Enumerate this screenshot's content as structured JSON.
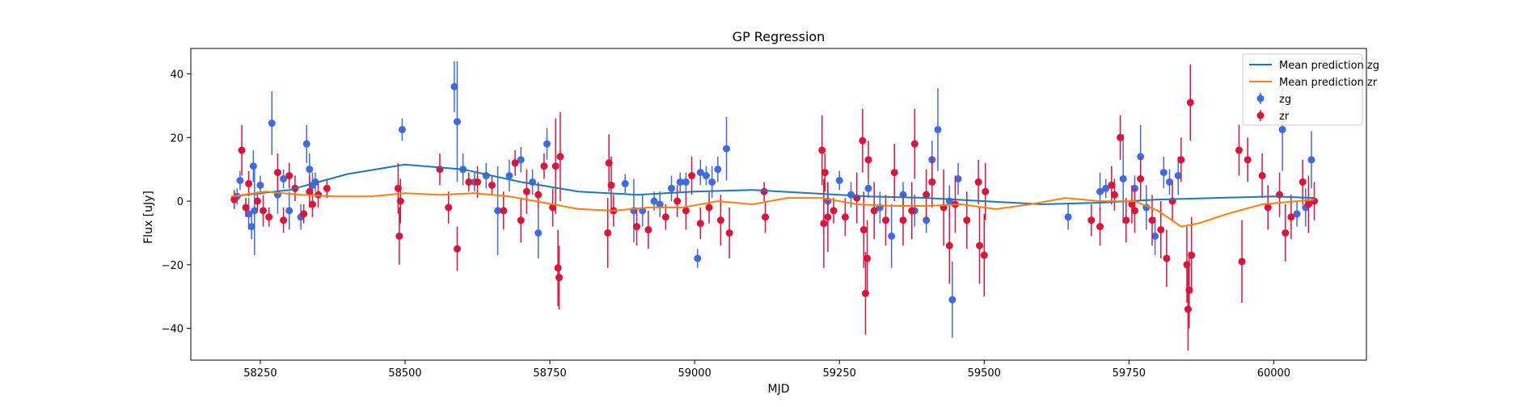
{
  "chart_data": {
    "type": "scatter",
    "title": "GP Regression",
    "xlabel": "MJD",
    "ylabel": "Flux [uJy]",
    "xlim": [
      58130,
      60160
    ],
    "ylim": [
      -50,
      48
    ],
    "xticks": [
      58250,
      58500,
      58750,
      59000,
      59250,
      59500,
      59750,
      60000
    ],
    "yticks": [
      -40,
      -20,
      0,
      20,
      40
    ],
    "grid": false,
    "legend_position": "top-right",
    "colors": {
      "zg_line": "#1f77b4",
      "zr_line": "#ff7f0e",
      "zg_points": "#4169e1",
      "zr_points": "#dc143c"
    },
    "legend": [
      "Mean prediction zg",
      "Mean prediction zr",
      "zg",
      "zr"
    ],
    "lines": [
      {
        "name": "Mean prediction zg",
        "x": [
          58200,
          58300,
          58400,
          58500,
          58600,
          58700,
          58800,
          58900,
          59000,
          59100,
          59200,
          59300,
          59400,
          59500,
          59600,
          59700,
          59800,
          59900,
          60000,
          60070
        ],
        "y": [
          1.5,
          3.5,
          8.5,
          11.5,
          10.0,
          6.0,
          3.0,
          2.0,
          3.0,
          3.5,
          2.5,
          1.5,
          1.0,
          0.0,
          -1.0,
          -0.5,
          0.5,
          1.0,
          1.5,
          1.0
        ]
      },
      {
        "name": "Mean prediction zr",
        "x": [
          58200,
          58260,
          58320,
          58380,
          58440,
          58500,
          58560,
          58620,
          58680,
          58740,
          58800,
          58860,
          58920,
          58980,
          59040,
          59100,
          59160,
          59220,
          59280,
          59340,
          59400,
          59460,
          59520,
          59580,
          59640,
          59700,
          59760,
          59800,
          59840,
          59870,
          59920,
          59980,
          60040,
          60070
        ],
        "y": [
          1.5,
          3.0,
          2.0,
          1.5,
          1.5,
          2.5,
          2.0,
          2.5,
          1.5,
          -0.5,
          -2.5,
          -3.0,
          -2.0,
          -2.0,
          0.0,
          -1.0,
          1.0,
          1.0,
          -1.0,
          -1.5,
          -1.5,
          -1.0,
          -2.5,
          -1.0,
          1.0,
          0.0,
          0.0,
          -3.0,
          -8.0,
          -7.0,
          -4.0,
          -1.0,
          0.0,
          0.5
        ]
      }
    ],
    "points": [
      {
        "name": "zg",
        "data": [
          [
            58210,
            1.5,
            2.5
          ],
          [
            58215,
            6.5,
            3
          ],
          [
            58230,
            -4,
            5
          ],
          [
            58235,
            -8,
            4
          ],
          [
            58238,
            11,
            5
          ],
          [
            58240,
            -3,
            14
          ],
          [
            58250,
            5,
            3
          ],
          [
            58270,
            24.5,
            10
          ],
          [
            58280,
            2,
            6
          ],
          [
            58290,
            7,
            3
          ],
          [
            58300,
            -3,
            6
          ],
          [
            58320,
            -5,
            4
          ],
          [
            58330,
            18,
            6
          ],
          [
            58335,
            10,
            5
          ],
          [
            58340,
            5,
            4
          ],
          [
            58345,
            6,
            3
          ],
          [
            58495,
            22.5,
            3.5
          ],
          [
            58585,
            36,
            8
          ],
          [
            58590,
            25,
            19
          ],
          [
            58600,
            10,
            5
          ],
          [
            58620,
            6,
            3
          ],
          [
            58640,
            8,
            4
          ],
          [
            58660,
            -3,
            14
          ],
          [
            58680,
            8,
            5
          ],
          [
            58700,
            13,
            4
          ],
          [
            58720,
            6,
            4
          ],
          [
            58730,
            -10,
            8
          ],
          [
            58745,
            18,
            5
          ],
          [
            58880,
            5.5,
            3
          ],
          [
            58895,
            -3,
            10
          ],
          [
            58910,
            -3,
            5
          ],
          [
            58930,
            0,
            3
          ],
          [
            58940,
            -1,
            4
          ],
          [
            58960,
            4,
            4
          ],
          [
            58975,
            6,
            3
          ],
          [
            58985,
            6,
            3
          ],
          [
            59005,
            -18,
            3
          ],
          [
            59010,
            9,
            4
          ],
          [
            59020,
            8,
            3
          ],
          [
            59030,
            6,
            5
          ],
          [
            59040,
            10,
            4
          ],
          [
            59055,
            16.5,
            10
          ],
          [
            59230,
            0,
            6
          ],
          [
            59250,
            6.5,
            3
          ],
          [
            59270,
            2,
            4
          ],
          [
            59300,
            4,
            3
          ],
          [
            59320,
            -2,
            5
          ],
          [
            59340,
            -11,
            10
          ],
          [
            59360,
            2,
            4
          ],
          [
            59380,
            -3,
            5
          ],
          [
            59400,
            -6,
            4
          ],
          [
            59410,
            13,
            6
          ],
          [
            59420,
            22.5,
            13
          ],
          [
            59440,
            0,
            5
          ],
          [
            59445,
            -31,
            12
          ],
          [
            59455,
            7,
            5
          ],
          [
            59645,
            -5,
            4
          ],
          [
            59700,
            3,
            6
          ],
          [
            59710,
            4,
            3
          ],
          [
            59740,
            7,
            14
          ],
          [
            59760,
            4,
            4
          ],
          [
            59770,
            14,
            10
          ],
          [
            59780,
            -2,
            7
          ],
          [
            59795,
            -11,
            6
          ],
          [
            59810,
            9,
            5
          ],
          [
            59820,
            6,
            4
          ],
          [
            59835,
            8,
            6
          ],
          [
            60015,
            22.5,
            13
          ],
          [
            60040,
            -4,
            4
          ],
          [
            60055,
            -2,
            6
          ],
          [
            60065,
            13,
            9
          ]
        ]
      },
      {
        "name": "zr",
        "data": [
          [
            58205,
            0.5,
            3
          ],
          [
            58218,
            16,
            8
          ],
          [
            58225,
            -2,
            3
          ],
          [
            58230,
            5.5,
            4
          ],
          [
            58245,
            0,
            3
          ],
          [
            58255,
            -3,
            5
          ],
          [
            58265,
            -5,
            3
          ],
          [
            58280,
            9,
            6
          ],
          [
            58290,
            -6,
            4
          ],
          [
            58300,
            8,
            4
          ],
          [
            58310,
            4,
            4
          ],
          [
            58325,
            -4,
            3
          ],
          [
            58335,
            3,
            5
          ],
          [
            58340,
            -1,
            4
          ],
          [
            58350,
            2,
            4
          ],
          [
            58365,
            4,
            3
          ],
          [
            58488,
            4,
            8
          ],
          [
            58490,
            -11,
            9
          ],
          [
            58492,
            0,
            7
          ],
          [
            58560,
            10,
            5
          ],
          [
            58575,
            -2,
            5
          ],
          [
            58590,
            -15,
            7
          ],
          [
            58610,
            6,
            3
          ],
          [
            58625,
            6,
            5
          ],
          [
            58650,
            5,
            3
          ],
          [
            58670,
            -3,
            6
          ],
          [
            58690,
            12,
            4
          ],
          [
            58700,
            -6,
            7
          ],
          [
            58710,
            3,
            7
          ],
          [
            58730,
            2,
            4
          ],
          [
            58740,
            11,
            4
          ],
          [
            58755,
            -2,
            6
          ],
          [
            58760,
            11,
            15
          ],
          [
            58764,
            -21,
            12
          ],
          [
            58766,
            -24,
            10
          ],
          [
            58768,
            14,
            14
          ],
          [
            58850,
            -10,
            11
          ],
          [
            58852,
            12,
            9
          ],
          [
            58856,
            5,
            9
          ],
          [
            58860,
            -3,
            5
          ],
          [
            58900,
            -8,
            6
          ],
          [
            58920,
            -9,
            6
          ],
          [
            58950,
            -5,
            4
          ],
          [
            58970,
            0,
            5
          ],
          [
            58985,
            -3,
            6
          ],
          [
            58995,
            8,
            6
          ],
          [
            59010,
            -7,
            5
          ],
          [
            59025,
            -2,
            5
          ],
          [
            59045,
            -6,
            8
          ],
          [
            59060,
            -10,
            8
          ],
          [
            59120,
            3,
            3
          ],
          [
            59122,
            -5,
            5
          ],
          [
            59220,
            16,
            11
          ],
          [
            59223,
            -7,
            14
          ],
          [
            59225,
            9,
            6
          ],
          [
            59230,
            -5,
            11
          ],
          [
            59240,
            -3,
            4
          ],
          [
            59260,
            -5,
            6
          ],
          [
            59280,
            1,
            8
          ],
          [
            59290,
            19,
            10
          ],
          [
            59292,
            -9,
            12
          ],
          [
            59295,
            -29,
            13
          ],
          [
            59298,
            -18,
            12
          ],
          [
            59300,
            13,
            6
          ],
          [
            59310,
            -3,
            9
          ],
          [
            59330,
            -6,
            8
          ],
          [
            59345,
            9,
            9
          ],
          [
            59360,
            -6,
            8
          ],
          [
            59375,
            -3,
            9
          ],
          [
            59380,
            18,
            11
          ],
          [
            59400,
            2,
            8
          ],
          [
            59410,
            6,
            8
          ],
          [
            59430,
            -2,
            12
          ],
          [
            59440,
            -14,
            12
          ],
          [
            59450,
            -1,
            9
          ],
          [
            59470,
            -6,
            9
          ],
          [
            59490,
            6,
            7
          ],
          [
            59492,
            -14,
            12
          ],
          [
            59500,
            -17,
            13
          ],
          [
            59502,
            3,
            9
          ],
          [
            59685,
            -6,
            5
          ],
          [
            59700,
            -8,
            6
          ],
          [
            59720,
            5,
            6
          ],
          [
            59725,
            2,
            5
          ],
          [
            59735,
            20,
            7
          ],
          [
            59745,
            -6,
            7
          ],
          [
            59755,
            -1,
            6
          ],
          [
            59760,
            -3,
            7
          ],
          [
            59770,
            7,
            7
          ],
          [
            59790,
            -6,
            8
          ],
          [
            59805,
            -9,
            9
          ],
          [
            59815,
            -18,
            9
          ],
          [
            59825,
            0,
            6
          ],
          [
            59840,
            13,
            7
          ],
          [
            59850,
            -20,
            12
          ],
          [
            59852,
            -34,
            13
          ],
          [
            59854,
            -28,
            12
          ],
          [
            59856,
            31,
            12
          ],
          [
            59858,
            -17,
            12
          ],
          [
            59940,
            16,
            8
          ],
          [
            59945,
            -19,
            13
          ],
          [
            59955,
            13,
            7
          ],
          [
            59980,
            8,
            7
          ],
          [
            59990,
            -2,
            7
          ],
          [
            60010,
            2,
            7
          ],
          [
            60020,
            -10,
            9
          ],
          [
            60030,
            -5,
            7
          ],
          [
            60050,
            6,
            7
          ],
          [
            60060,
            -1,
            9
          ],
          [
            60070,
            0,
            6
          ]
        ]
      }
    ]
  }
}
